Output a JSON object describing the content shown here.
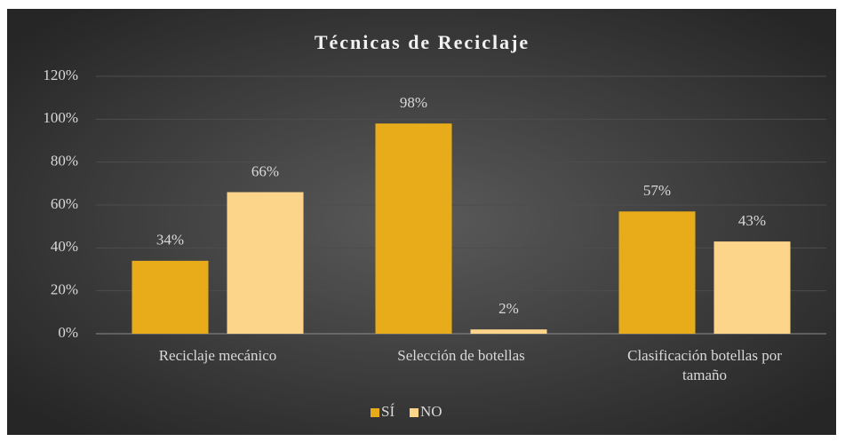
{
  "chart_data": {
    "type": "bar",
    "title": "Técnicas de Reciclaje",
    "categories": [
      "Reciclaje mecánico",
      "Selección de botellas",
      "Clasificación botellas por tamaño"
    ],
    "series": [
      {
        "name": "SÍ",
        "color": "#e8ac1a",
        "values": [
          34,
          98,
          57
        ],
        "value_labels": [
          "34%",
          "98%",
          "57%"
        ]
      },
      {
        "name": "NO",
        "color": "#fdd58a",
        "values": [
          66,
          2,
          43
        ],
        "value_labels": [
          "66%",
          "2%",
          "43%"
        ]
      }
    ],
    "ylim": [
      0,
      120
    ],
    "yticks": [
      {
        "value": 0,
        "label": "0%"
      },
      {
        "value": 20,
        "label": "20%"
      },
      {
        "value": 40,
        "label": "40%"
      },
      {
        "value": 60,
        "label": "60%"
      },
      {
        "value": 80,
        "label": "80%"
      },
      {
        "value": 100,
        "label": "100%"
      },
      {
        "value": 120,
        "label": "120%"
      }
    ],
    "grid": true,
    "legend": "bottom"
  }
}
